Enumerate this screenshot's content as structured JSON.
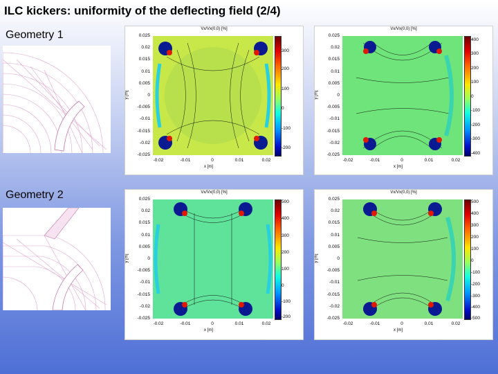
{
  "slide": {
    "title": "ILC kickers: uniformity of the deflecting field (2/4)",
    "geometry1_label": "Geometry 1",
    "geometry2_label": "Geometry 2"
  },
  "plots": {
    "p1": {
      "title": "Vx/Vx(0,0) [%]",
      "colorbar": [
        "300",
        "200",
        "100",
        "0",
        "-100",
        "-200"
      ]
    },
    "p2": {
      "title": "Vx/Vx(0,0) [%]",
      "colorbar": [
        "400",
        "300",
        "200",
        "100",
        "0",
        "-100",
        "-200",
        "-300",
        "-400"
      ]
    },
    "p3": {
      "title": "Vx/Vx(0,0) [%]",
      "colorbar": [
        "500",
        "400",
        "300",
        "200",
        "100",
        "0",
        "-100",
        "-200"
      ]
    },
    "p4": {
      "title": "Vx/Vx(0,0) [%]",
      "colorbar": [
        "500",
        "400",
        "300",
        "200",
        "100",
        "0",
        "-100",
        "-200",
        "-300",
        "-400",
        "-500"
      ]
    }
  },
  "axes": {
    "yticks": [
      "0.025",
      "0.02",
      "0.015",
      "0.01",
      "0.005",
      "0",
      "-0.005",
      "-0.01",
      "-0.015",
      "-0.02",
      "-0.025"
    ],
    "xticks": [
      "-0.02",
      "-0.01",
      "0",
      "0.01",
      "0.02"
    ],
    "xlabel": "x [m]",
    "ylabel": "y [m]"
  },
  "colors": {
    "field_p1": "#c8e84a",
    "field_p2": "#6fe47a",
    "field_p3": "#5fe39a",
    "field_p4": "#7fe07f"
  }
}
